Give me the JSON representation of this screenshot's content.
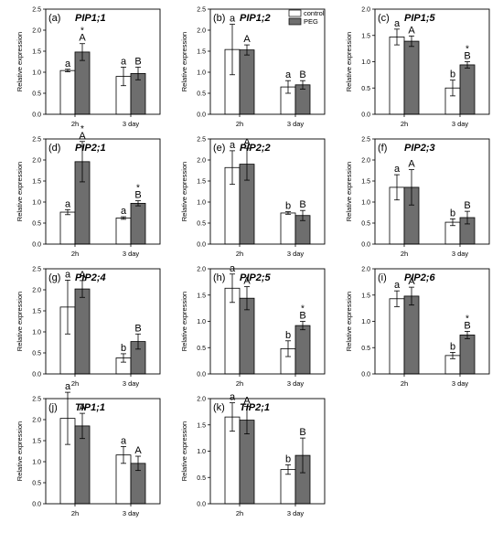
{
  "chart_data": [
    {
      "type": "bar",
      "panel": "(a)",
      "title": "PIP1;1",
      "ylabel": "Relative expression",
      "ylim": [
        0,
        2.5
      ],
      "yticks": [
        0.0,
        0.5,
        1.0,
        1.5,
        2.0,
        2.5
      ],
      "categories": [
        "2h",
        "3 day"
      ],
      "series": [
        {
          "name": "control",
          "values": [
            1.04,
            0.9
          ],
          "errors": [
            0.03,
            0.22
          ]
        },
        {
          "name": "PEG",
          "values": [
            1.48,
            0.97
          ],
          "errors": [
            0.2,
            0.15
          ]
        }
      ],
      "letters": [
        [
          "a",
          "A"
        ],
        [
          "a",
          "B"
        ]
      ],
      "stars": [
        [
          false,
          true
        ],
        [
          false,
          false
        ]
      ]
    },
    {
      "type": "bar",
      "panel": "(b)",
      "title": "PIP1;2",
      "ylabel": "Relative expression",
      "ylim": [
        0,
        2.5
      ],
      "yticks": [
        0.0,
        0.5,
        1.0,
        1.5,
        2.0,
        2.5
      ],
      "categories": [
        "2h",
        "3 day"
      ],
      "series": [
        {
          "name": "control",
          "values": [
            1.54,
            0.65
          ],
          "errors": [
            0.6,
            0.15
          ]
        },
        {
          "name": "PEG",
          "values": [
            1.53,
            0.7
          ],
          "errors": [
            0.12,
            0.1
          ]
        }
      ],
      "letters": [
        [
          "a",
          "A"
        ],
        [
          "a",
          "B"
        ]
      ],
      "stars": [
        [
          false,
          false
        ],
        [
          false,
          false
        ]
      ]
    },
    {
      "type": "bar",
      "panel": "(c)",
      "title": "PIP1;5",
      "ylabel": "Relative expression",
      "ylim": [
        0,
        2.0
      ],
      "yticks": [
        0.0,
        0.5,
        1.0,
        1.5,
        2.0
      ],
      "categories": [
        "2h",
        "3 day"
      ],
      "series": [
        {
          "name": "control",
          "values": [
            1.47,
            0.5
          ],
          "errors": [
            0.15,
            0.15
          ]
        },
        {
          "name": "PEG",
          "values": [
            1.39,
            0.94
          ],
          "errors": [
            0.1,
            0.06
          ]
        }
      ],
      "letters": [
        [
          "a",
          "A"
        ],
        [
          "b",
          "B"
        ]
      ],
      "stars": [
        [
          false,
          false
        ],
        [
          false,
          true
        ]
      ]
    },
    {
      "type": "bar",
      "panel": "(d)",
      "title": "PIP2;1",
      "ylabel": "Relative expression",
      "ylim": [
        0,
        2.5
      ],
      "yticks": [
        0.0,
        0.5,
        1.0,
        1.5,
        2.0,
        2.5
      ],
      "categories": [
        "2h",
        "3 day"
      ],
      "series": [
        {
          "name": "control",
          "values": [
            0.76,
            0.62
          ],
          "errors": [
            0.06,
            0.03
          ]
        },
        {
          "name": "PEG",
          "values": [
            1.96,
            0.97
          ],
          "errors": [
            0.48,
            0.06
          ]
        }
      ],
      "letters": [
        [
          "a",
          "A"
        ],
        [
          "a",
          "B"
        ]
      ],
      "stars": [
        [
          false,
          true
        ],
        [
          false,
          true
        ]
      ]
    },
    {
      "type": "bar",
      "panel": "(e)",
      "title": "PIP2;2",
      "ylabel": "Relative expression",
      "ylim": [
        0,
        2.5
      ],
      "yticks": [
        0.0,
        0.5,
        1.0,
        1.5,
        2.0,
        2.5
      ],
      "categories": [
        "2h",
        "3 day"
      ],
      "series": [
        {
          "name": "control",
          "values": [
            1.82,
            0.74
          ],
          "errors": [
            0.4,
            0.03
          ]
        },
        {
          "name": "PEG",
          "values": [
            1.9,
            0.68
          ],
          "errors": [
            0.38,
            0.12
          ]
        }
      ],
      "letters": [
        [
          "a",
          "A"
        ],
        [
          "b",
          "B"
        ]
      ],
      "stars": [
        [
          false,
          false
        ],
        [
          false,
          false
        ]
      ]
    },
    {
      "type": "bar",
      "panel": "(f)",
      "title": "PIP2;3",
      "ylabel": "Relative expression",
      "ylim": [
        0,
        2.5
      ],
      "yticks": [
        0.0,
        0.5,
        1.0,
        1.5,
        2.0,
        2.5
      ],
      "categories": [
        "2h",
        "3 day"
      ],
      "series": [
        {
          "name": "control",
          "values": [
            1.35,
            0.52
          ],
          "errors": [
            0.3,
            0.08
          ]
        },
        {
          "name": "PEG",
          "values": [
            1.35,
            0.63
          ],
          "errors": [
            0.42,
            0.15
          ]
        }
      ],
      "letters": [
        [
          "a",
          "A"
        ],
        [
          "b",
          "B"
        ]
      ],
      "stars": [
        [
          false,
          false
        ],
        [
          false,
          false
        ]
      ]
    },
    {
      "type": "bar",
      "panel": "(g)",
      "title": "PIP2;4",
      "ylabel": "Relative expression",
      "ylim": [
        0,
        2.5
      ],
      "yticks": [
        0.0,
        0.5,
        1.0,
        1.5,
        2.0,
        2.5
      ],
      "categories": [
        "2h",
        "3 day"
      ],
      "series": [
        {
          "name": "control",
          "values": [
            1.59,
            0.38
          ],
          "errors": [
            0.64,
            0.1
          ]
        },
        {
          "name": "PEG",
          "values": [
            2.02,
            0.77
          ],
          "errors": [
            0.2,
            0.18
          ]
        }
      ],
      "letters": [
        [
          "a",
          "A"
        ],
        [
          "b",
          "B"
        ]
      ],
      "stars": [
        [
          false,
          false
        ],
        [
          false,
          false
        ]
      ]
    },
    {
      "type": "bar",
      "panel": "(h)",
      "title": "PIP2;5",
      "ylabel": "Relative expression",
      "ylim": [
        0,
        2.0
      ],
      "yticks": [
        0.0,
        0.5,
        1.0,
        1.5,
        2.0
      ],
      "categories": [
        "2h",
        "3 day"
      ],
      "series": [
        {
          "name": "control",
          "values": [
            1.63,
            0.48
          ],
          "errors": [
            0.27,
            0.15
          ]
        },
        {
          "name": "PEG",
          "values": [
            1.44,
            0.92
          ],
          "errors": [
            0.22,
            0.08
          ]
        }
      ],
      "letters": [
        [
          "a",
          "A"
        ],
        [
          "b",
          "B"
        ]
      ],
      "stars": [
        [
          false,
          false
        ],
        [
          false,
          true
        ]
      ]
    },
    {
      "type": "bar",
      "panel": "(i)",
      "title": "PIP2;6",
      "ylabel": "Relative expression",
      "ylim": [
        0,
        2.0
      ],
      "yticks": [
        0.0,
        0.5,
        1.0,
        1.5,
        2.0
      ],
      "categories": [
        "2h",
        "3 day"
      ],
      "series": [
        {
          "name": "control",
          "values": [
            1.43,
            0.35
          ],
          "errors": [
            0.15,
            0.06
          ]
        },
        {
          "name": "PEG",
          "values": [
            1.48,
            0.74
          ],
          "errors": [
            0.17,
            0.07
          ]
        }
      ],
      "letters": [
        [
          "a",
          "A"
        ],
        [
          "b",
          "B"
        ]
      ],
      "stars": [
        [
          false,
          false
        ],
        [
          false,
          true
        ]
      ]
    },
    {
      "type": "bar",
      "panel": "(j)",
      "title": "TIP1;1",
      "ylabel": "Relative expression",
      "ylim": [
        0,
        2.5
      ],
      "yticks": [
        0.0,
        0.5,
        1.0,
        1.5,
        2.0,
        2.5
      ],
      "categories": [
        "2h",
        "3 day"
      ],
      "series": [
        {
          "name": "control",
          "values": [
            2.03,
            1.16
          ],
          "errors": [
            0.62,
            0.2
          ]
        },
        {
          "name": "PEG",
          "values": [
            1.85,
            0.96
          ],
          "errors": [
            0.3,
            0.17
          ]
        }
      ],
      "letters": [
        [
          "a",
          "A"
        ],
        [
          "a",
          "A"
        ]
      ],
      "stars": [
        [
          false,
          false
        ],
        [
          false,
          false
        ]
      ]
    },
    {
      "type": "bar",
      "panel": "(k)",
      "title": "TIP2;1",
      "ylabel": "Relative expression",
      "ylim": [
        0,
        2.0
      ],
      "yticks": [
        0.0,
        0.5,
        1.0,
        1.5,
        2.0
      ],
      "categories": [
        "2h",
        "3 day"
      ],
      "series": [
        {
          "name": "control",
          "values": [
            1.65,
            0.65
          ],
          "errors": [
            0.27,
            0.09
          ]
        },
        {
          "name": "PEG",
          "values": [
            1.59,
            0.92
          ],
          "errors": [
            0.26,
            0.33
          ]
        }
      ],
      "letters": [
        [
          "a",
          "A"
        ],
        [
          "b",
          "B"
        ]
      ],
      "stars": [
        [
          false,
          false
        ],
        [
          false,
          false
        ]
      ]
    }
  ],
  "legend": {
    "items": [
      {
        "label": "control",
        "color": "#ffffff"
      },
      {
        "label": "PEG",
        "color": "#6e6e6e"
      }
    ],
    "placement": "top of panel (b)"
  },
  "colors": {
    "control": "#ffffff",
    "peg": "#6e6e6e",
    "axis": "#000000"
  },
  "star_symbol": "*"
}
